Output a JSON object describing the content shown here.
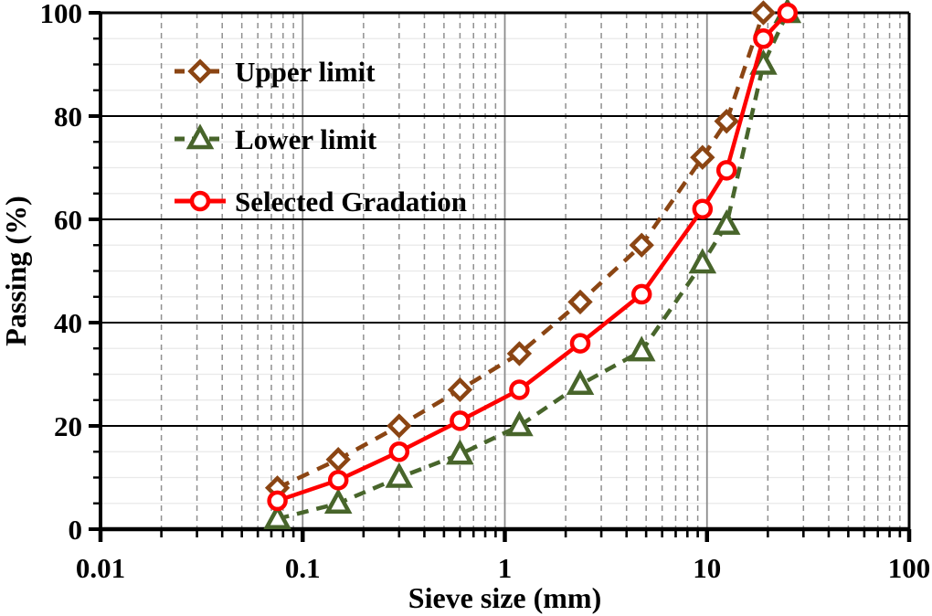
{
  "chart_data": {
    "type": "line",
    "title": "",
    "x_axis": {
      "label": "Sieve size (mm)",
      "scale": "log",
      "min": 0.01,
      "max": 100,
      "ticks": [
        0.01,
        0.1,
        1,
        10,
        100
      ],
      "tick_labels": [
        "0.01",
        "0.1",
        "1",
        "10",
        "100"
      ]
    },
    "y_axis": {
      "label": "Passing (%)",
      "min": 0,
      "max": 100,
      "major_step": 20,
      "minor_step": 5,
      "ticks": [
        0,
        20,
        40,
        60,
        80,
        100
      ],
      "tick_labels": [
        "0",
        "20",
        "40",
        "60",
        "80",
        "100"
      ]
    },
    "grid": {
      "vertical_minor_style": "dashed",
      "vertical_minor_color": "#909090",
      "vertical_decade_color": "#8C8C8C",
      "horizontal_minor_color": "#E9E9E9",
      "horizontal_major_color": "#000000"
    },
    "legend": {
      "position": "top-left-inside"
    },
    "series": [
      {
        "name": "Upper limit",
        "color": "#8B4513",
        "line_style": "dashed",
        "marker": "diamond",
        "points": [
          [
            0.075,
            8
          ],
          [
            0.15,
            13.5
          ],
          [
            0.3,
            20
          ],
          [
            0.6,
            27
          ],
          [
            1.18,
            34
          ],
          [
            2.36,
            44
          ],
          [
            4.75,
            55
          ],
          [
            9.5,
            72
          ],
          [
            12.5,
            79
          ],
          [
            19,
            100
          ]
        ]
      },
      {
        "name": "Lower limit",
        "color": "#48652B",
        "line_style": "dashed",
        "marker": "triangle",
        "points": [
          [
            0.075,
            2
          ],
          [
            0.15,
            5
          ],
          [
            0.3,
            10
          ],
          [
            0.6,
            14.5
          ],
          [
            1.18,
            20
          ],
          [
            2.36,
            28
          ],
          [
            4.75,
            34.5
          ],
          [
            9.5,
            51.5
          ],
          [
            12.5,
            59
          ],
          [
            19,
            90
          ],
          [
            25,
            100
          ]
        ]
      },
      {
        "name": "Selected Gradation",
        "color": "#FF0000",
        "line_style": "solid",
        "marker": "circle",
        "points": [
          [
            0.075,
            5.5
          ],
          [
            0.15,
            9.5
          ],
          [
            0.3,
            15
          ],
          [
            0.6,
            21
          ],
          [
            1.18,
            27
          ],
          [
            2.36,
            36
          ],
          [
            4.75,
            45.5
          ],
          [
            9.5,
            62
          ],
          [
            12.5,
            69.5
          ],
          [
            19,
            95
          ],
          [
            25,
            100
          ]
        ]
      }
    ]
  }
}
